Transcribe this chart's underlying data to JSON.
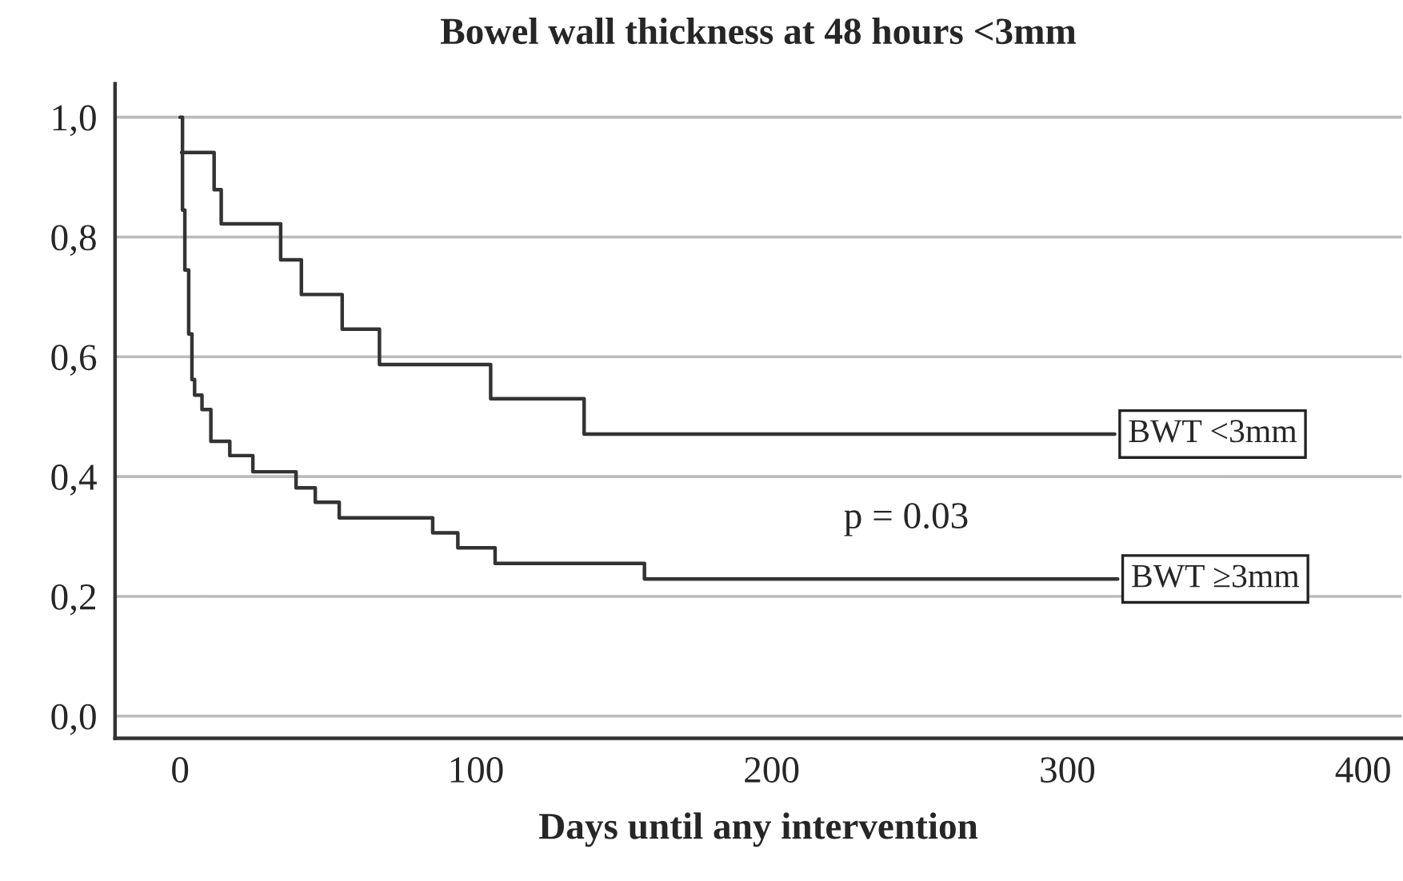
{
  "chart_data": {
    "type": "step",
    "title": "Bowel wall thickness at 48 hours <3mm",
    "xlabel": "Days until any intervention",
    "xlim": [
      -22,
      413
    ],
    "ylim": [
      -0.037,
      1.056
    ],
    "xticks": [
      0,
      100,
      200,
      300,
      400
    ],
    "yticks": [
      {
        "value": 0,
        "label": "0,0"
      },
      {
        "value": 0.2,
        "label": "0,2"
      },
      {
        "value": 0.4,
        "label": "0,4"
      },
      {
        "value": 0.6,
        "label": "0,6"
      },
      {
        "value": 0.8,
        "label": "0,8"
      },
      {
        "value": 1.0,
        "label": "1,0"
      }
    ],
    "grid": "y",
    "legend": false,
    "marker": "none",
    "line_style": "solid",
    "annotations": [
      "p = 0.03"
    ],
    "series": [
      {
        "name": "BWT <3mm",
        "color": "#333333",
        "x": [
          0.5,
          11.5,
          13.9,
          34,
          41,
          54.8,
          67.4,
          105,
          136.6,
          316
        ],
        "values": [
          0.941,
          0.879,
          0.822,
          0.762,
          0.704,
          0.646,
          0.587,
          0.53,
          0.471,
          0.471
        ]
      },
      {
        "name": "BWT ≥3mm",
        "color": "#333333",
        "x": [
          0,
          0.8,
          1.6,
          2.9,
          4,
          4.9,
          7.4,
          10.4,
          16.8,
          24.6,
          39.2,
          45.7,
          53.8,
          85.4,
          93.9,
          106.5,
          157,
          317
        ],
        "values": [
          1,
          0.845,
          0.745,
          0.638,
          0.562,
          0.536,
          0.512,
          0.459,
          0.435,
          0.408,
          0.381,
          0.357,
          0.331,
          0.306,
          0.281,
          0.255,
          0.229,
          0.229
        ]
      }
    ]
  }
}
